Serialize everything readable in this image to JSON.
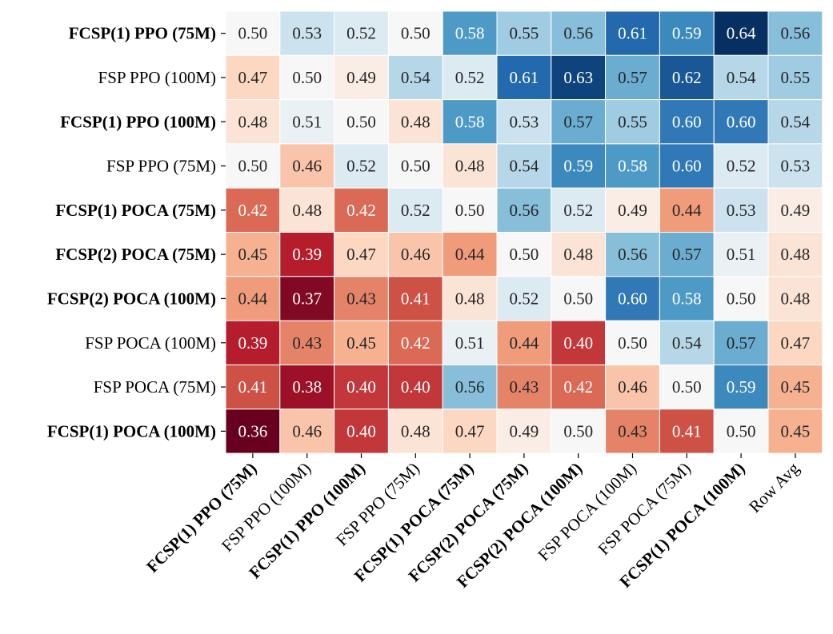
{
  "chart_data": {
    "type": "heatmap",
    "title": "",
    "xlabel": "",
    "ylabel": "",
    "row_labels": [
      "FCSP(1) PPO (75M)",
      "FSP PPO (100M)",
      "FCSP(1) PPO (100M)",
      "FSP PPO (75M)",
      "FCSP(1) POCA (75M)",
      "FCSP(2) POCA (75M)",
      "FCSP(2) POCA (100M)",
      "FSP POCA (100M)",
      "FSP POCA (75M)",
      "FCSP(1) POCA (100M)"
    ],
    "row_bold": [
      true,
      false,
      true,
      false,
      true,
      true,
      true,
      false,
      false,
      true
    ],
    "col_labels": [
      "FCSP(1) PPO (75M)",
      "FSP PPO (100M)",
      "FCSP(1) PPO (100M)",
      "FSP PPO (75M)",
      "FCSP(1) POCA (75M)",
      "FCSP(2) POCA (75M)",
      "FCSP(2) POCA (100M)",
      "FSP POCA (100M)",
      "FSP POCA (75M)",
      "FCSP(1) POCA (100M)",
      "Row Avg"
    ],
    "col_bold": [
      true,
      false,
      true,
      false,
      true,
      true,
      true,
      false,
      false,
      true,
      false
    ],
    "values": [
      [
        0.5,
        0.53,
        0.52,
        0.5,
        0.58,
        0.55,
        0.56,
        0.61,
        0.59,
        0.64,
        0.56
      ],
      [
        0.47,
        0.5,
        0.49,
        0.54,
        0.52,
        0.61,
        0.63,
        0.57,
        0.62,
        0.54,
        0.55
      ],
      [
        0.48,
        0.51,
        0.5,
        0.48,
        0.58,
        0.53,
        0.57,
        0.55,
        0.6,
        0.6,
        0.54
      ],
      [
        0.5,
        0.46,
        0.52,
        0.5,
        0.48,
        0.54,
        0.59,
        0.58,
        0.6,
        0.52,
        0.53
      ],
      [
        0.42,
        0.48,
        0.42,
        0.52,
        0.5,
        0.56,
        0.52,
        0.49,
        0.44,
        0.53,
        0.49
      ],
      [
        0.45,
        0.39,
        0.47,
        0.46,
        0.44,
        0.5,
        0.48,
        0.56,
        0.57,
        0.51,
        0.48
      ],
      [
        0.44,
        0.37,
        0.43,
        0.41,
        0.48,
        0.52,
        0.5,
        0.6,
        0.58,
        0.5,
        0.48
      ],
      [
        0.39,
        0.43,
        0.45,
        0.42,
        0.51,
        0.44,
        0.4,
        0.5,
        0.54,
        0.57,
        0.47
      ],
      [
        0.41,
        0.38,
        0.4,
        0.4,
        0.56,
        0.43,
        0.42,
        0.46,
        0.5,
        0.59,
        0.45
      ],
      [
        0.36,
        0.46,
        0.4,
        0.48,
        0.47,
        0.49,
        0.5,
        0.43,
        0.41,
        0.5,
        0.45
      ]
    ],
    "colormap": "RdBu",
    "vmin": 0.36,
    "vmax": 0.64,
    "center": 0.5,
    "colorbar": false,
    "grid": true
  },
  "colors": {
    "cell_border": "#ffffff",
    "text_dark": "#262626",
    "text_light": "#ffffff",
    "tick": "#000000"
  }
}
